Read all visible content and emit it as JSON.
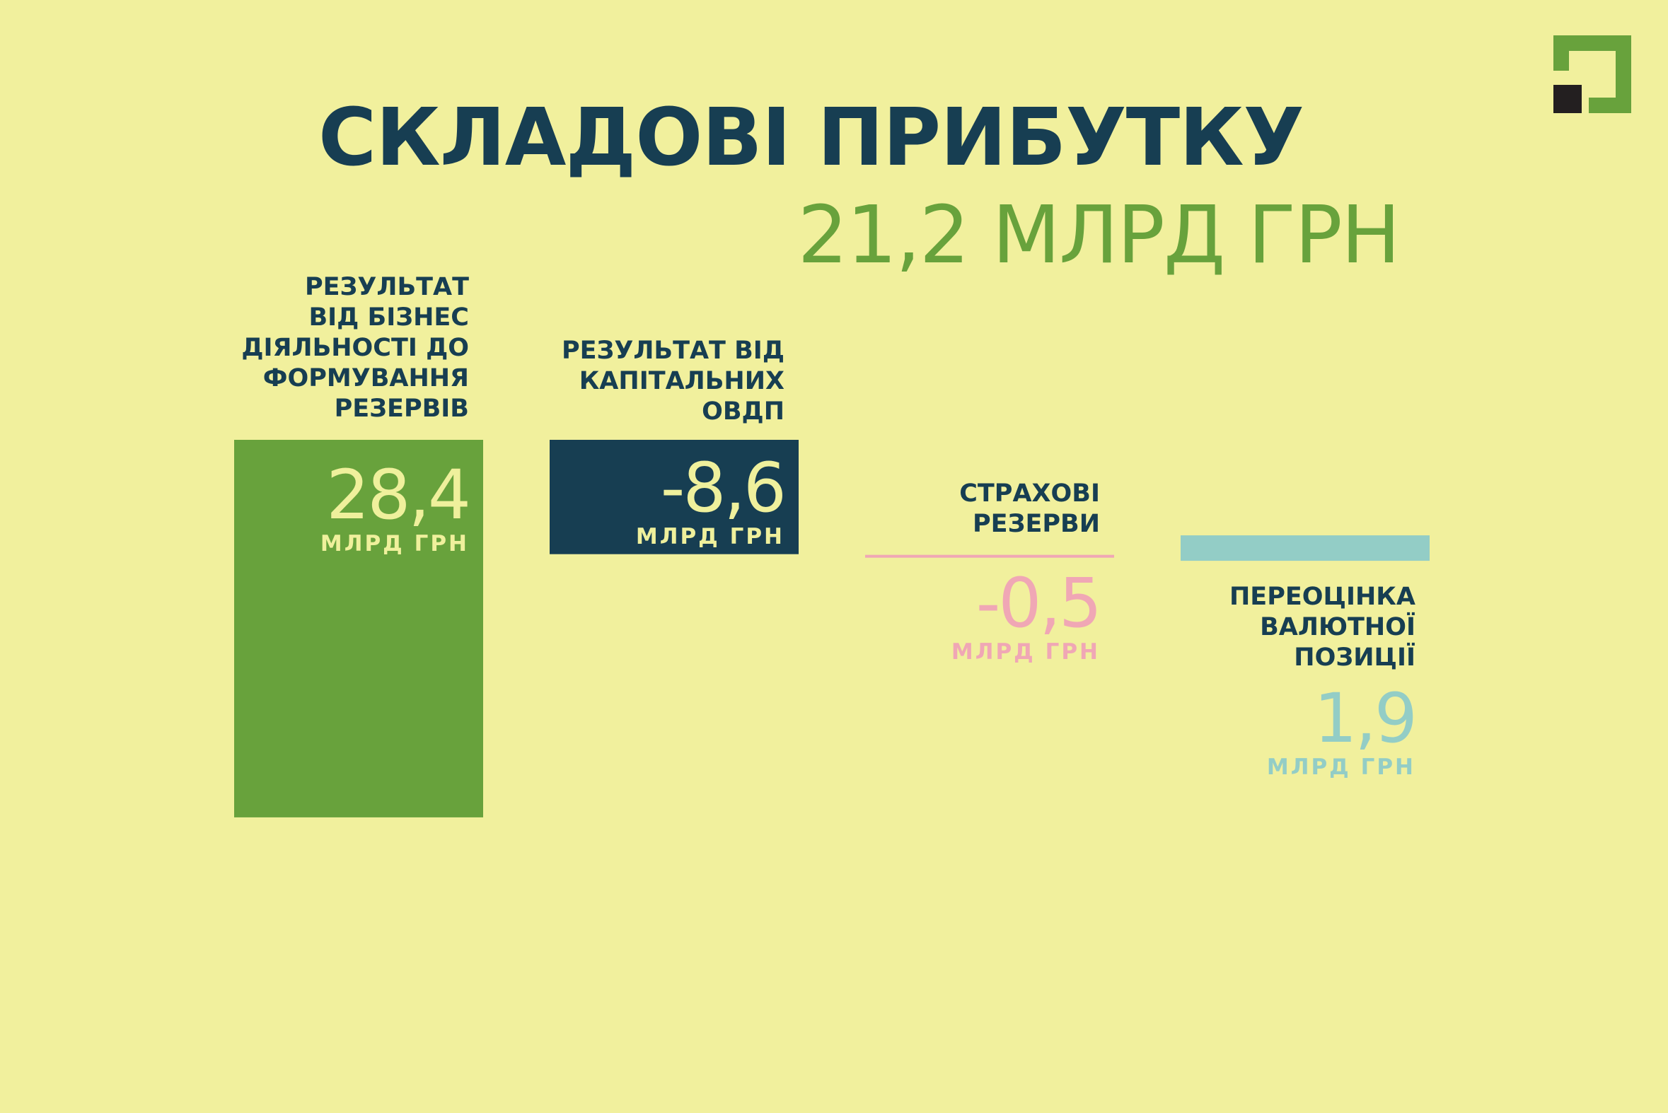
{
  "header": {
    "title": "СКЛАДОВІ ПРИБУТКУ",
    "total": "21,2 МЛРД ГРН"
  },
  "logo": {
    "icon": "privatbank-logo-icon",
    "colors": [
      "#68a23c",
      "#231f20"
    ]
  },
  "chart_data": {
    "type": "bar",
    "title": "СКЛАДОВІ ПРИБУТКУ",
    "subtitle": "21,2 МЛРД ГРН",
    "unit": "МЛРД ГРН",
    "categories": [
      "РЕЗУЛЬТАТ ВІД БІЗНЕС ДІЯЛЬНОСТІ ДО ФОРМУВАННЯ РЕЗЕРВІВ",
      "РЕЗУЛЬТАТ ВІД КАПІТАЛЬНИХ ОВДП",
      "СТРАХОВІ РЕЗЕРВИ",
      "ПЕРЕОЦІНКА ВАЛЮТНОЇ ПОЗИЦІЇ"
    ],
    "values": [
      28.4,
      -8.6,
      -0.5,
      1.9
    ],
    "value_labels": [
      "28,4",
      "-8,6",
      "-0,5",
      "1,9"
    ],
    "colors": [
      "#68a23c",
      "#173e52",
      "#f0a7b5",
      "#93cdc6"
    ],
    "ylim": [
      -8.6,
      28.4
    ],
    "grid": false,
    "legend": "none"
  }
}
